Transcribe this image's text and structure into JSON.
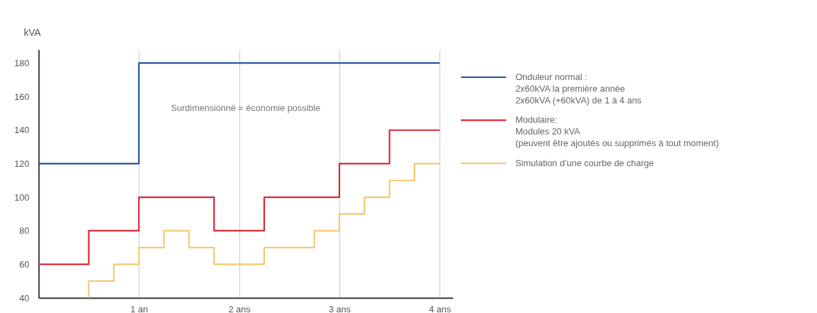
{
  "chart_data": {
    "type": "step",
    "ylabel": "kVA",
    "xlim": [
      0,
      4.13
    ],
    "xticks": [
      {
        "value": 1,
        "label": "1 an"
      },
      {
        "value": 2,
        "label": "2 ans"
      },
      {
        "value": 3,
        "label": "3 ans"
      },
      {
        "value": 4,
        "label": "4 ans"
      }
    ],
    "ylim": [
      40,
      188
    ],
    "yticks": [
      40,
      60,
      80,
      100,
      120,
      140,
      160,
      180
    ],
    "grid": "x",
    "legend": "right",
    "marker": "none",
    "line_style": "solid",
    "annotations": [
      "Surdimensionné = économie possible"
    ],
    "series": [
      {
        "name": "Onduleur normal :\n2x60kVA la première année\n2x60kVA (+60kVA) de 1 à 4 ans",
        "color": "#1f4e9c",
        "x": [
          0,
          1,
          4
        ],
        "values": [
          120,
          180,
          180
        ]
      },
      {
        "name": "Modulaire:\nModules 20 kVA\n(peuvent être ajoutés ou supprimés à tout moment)",
        "color": "#d9232e",
        "x": [
          0,
          0.5,
          1,
          1.75,
          2.25,
          3,
          3.5,
          4
        ],
        "values": [
          60,
          80,
          100,
          80,
          100,
          120,
          140,
          140
        ]
      },
      {
        "name": "Simulation d’une courbe de charge",
        "color": "#f2c86b",
        "x": [
          0.5,
          0.5,
          0.75,
          1,
          1.25,
          1.5,
          1.75,
          2.25,
          2.75,
          3,
          3.25,
          3.5,
          3.75,
          4
        ],
        "values": [
          40,
          50,
          60,
          70,
          80,
          70,
          60,
          70,
          80,
          90,
          100,
          110,
          120,
          120
        ]
      }
    ]
  }
}
